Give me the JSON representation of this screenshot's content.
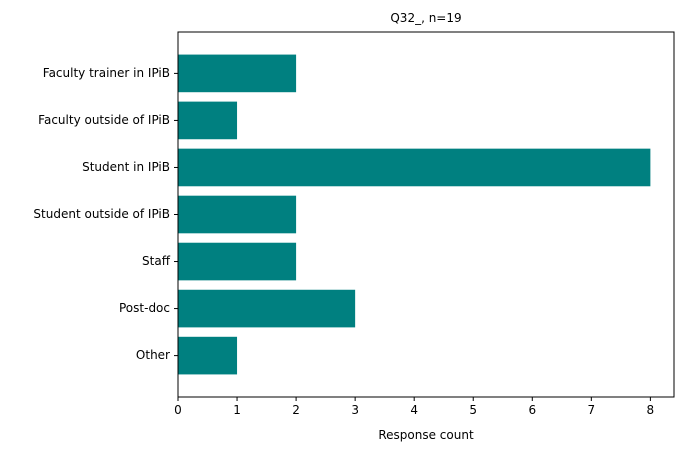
{
  "chart_data": {
    "type": "bar",
    "orientation": "horizontal",
    "title": "Q32_, n=19",
    "xlabel": "Response count",
    "ylabel": "",
    "categories": [
      "Faculty trainer in IPiB",
      "Faculty outside of IPiB",
      "Student in IPiB",
      "Student outside of IPiB",
      "Staff",
      "Post-doc",
      "Other"
    ],
    "values": [
      2,
      1,
      8,
      2,
      2,
      3,
      1
    ],
    "xlim": [
      0,
      8.4
    ],
    "xticks": [
      0,
      1,
      2,
      3,
      4,
      5,
      6,
      7,
      8
    ],
    "bar_color": "#008080",
    "grid": false,
    "legend": "none"
  }
}
